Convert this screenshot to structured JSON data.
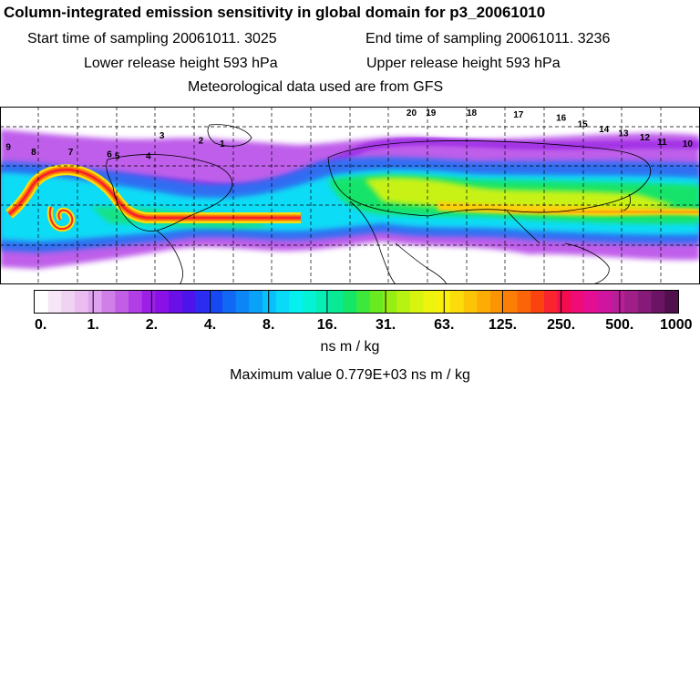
{
  "title": "Column-integrated emission sensitivity in global domain for p3_20061010",
  "header": {
    "start_time": "Start time of sampling 20061011.  3025",
    "end_time": "End time of sampling 20061011.  3236",
    "lower_height": "Lower release height  593 hPa",
    "upper_height": "Upper release height  593 hPa",
    "met_data": "Meteorological data used are from GFS"
  },
  "colors": {
    "palette": [
      "#ffffff",
      "#f7e6f7",
      "#f0d2f2",
      "#eabcf0",
      "#e0a2ee",
      "#d07ee8",
      "#c25ee6",
      "#b23ee6",
      "#9c20e6",
      "#8a10e8",
      "#6a10e6",
      "#4c14ea",
      "#2c2cf0",
      "#1848f2",
      "#1068f4",
      "#0c86f6",
      "#0aa2f8",
      "#0ac0fa",
      "#08daf8",
      "#06f0f0",
      "#06f2d4",
      "#06eeb4",
      "#08ea94",
      "#14e668",
      "#3ce83c",
      "#6aea20",
      "#96ee14",
      "#b6f212",
      "#d6f410",
      "#eef40e",
      "#faf00c",
      "#fcdc0a",
      "#fcc406",
      "#fcac04",
      "#fc9404",
      "#fc7e06",
      "#fc640a",
      "#fa4410",
      "#f82430",
      "#f40c50",
      "#f00c78",
      "#e40e94",
      "#d014a0",
      "#b81e98",
      "#a01e88",
      "#861a78",
      "#6c1464",
      "#50104c"
    ]
  },
  "colorbar": {
    "tick_labels": [
      "0.",
      "1.",
      "2.",
      "4.",
      "8.",
      "16.",
      "31.",
      "63.",
      "125.",
      "250.",
      "500.",
      "1000."
    ],
    "units": "ns m / kg",
    "max_value_text": "Maximum value  0.779E+03 ns m / kg"
  },
  "release_points": [
    {
      "label": "20",
      "lon": 29,
      "lat": 81
    },
    {
      "label": "19",
      "lon": 39,
      "lat": 80
    },
    {
      "label": "18",
      "lon": 60,
      "lat": 77
    },
    {
      "label": "17",
      "lon": 84,
      "lat": 74
    },
    {
      "label": "16",
      "lon": 106,
      "lat": 71
    },
    {
      "label": "15",
      "lon": 117,
      "lat": 65
    },
    {
      "label": "14",
      "lon": 128,
      "lat": 60
    },
    {
      "label": "13",
      "lon": 138,
      "lat": 56
    },
    {
      "label": "12",
      "lon": 149,
      "lat": 52
    },
    {
      "label": "11",
      "lon": 158,
      "lat": 48
    },
    {
      "label": "10",
      "lon": 171,
      "lat": 46
    },
    {
      "label": "9",
      "lon": 183,
      "lat": 43
    },
    {
      "label": "8",
      "lon": 196,
      "lat": 38
    },
    {
      "label": "7",
      "lon": 215,
      "lat": 38
    },
    {
      "label": "6",
      "lon": 235,
      "lat": 36
    },
    {
      "label": "5",
      "lon": 239,
      "lat": 34
    },
    {
      "label": "4",
      "lon": 255,
      "lat": 34
    },
    {
      "label": "3",
      "lon": 262,
      "lat": 54
    },
    {
      "label": "2",
      "lon": 282,
      "lat": 49
    },
    {
      "label": "1",
      "lon": 293,
      "lat": 46
    }
  ]
}
